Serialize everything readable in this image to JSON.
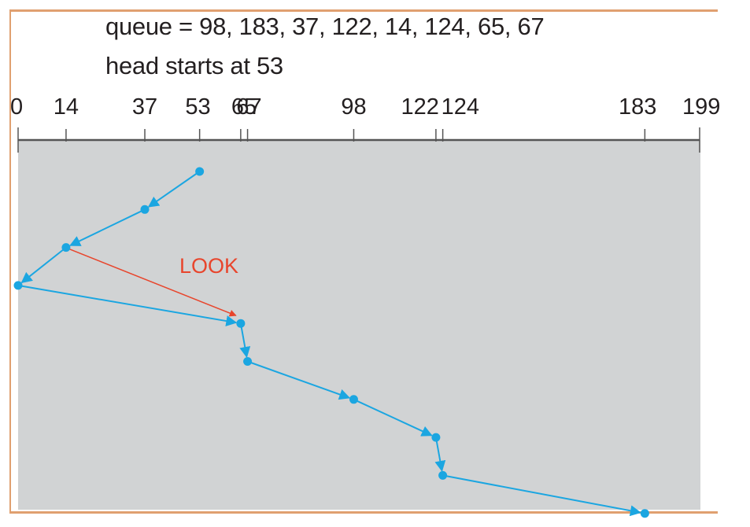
{
  "header": {
    "queue_line": "queue = 98, 183, 37, 122, 14, 124, 65, 67",
    "head_line": "head starts at 53"
  },
  "axis": {
    "ticks": [
      {
        "value": 0,
        "label": "0"
      },
      {
        "value": 14,
        "label": "14"
      },
      {
        "value": 37,
        "label": "37"
      },
      {
        "value": 53,
        "label": "53"
      },
      {
        "value": 65,
        "label": "65"
      },
      {
        "value": 67,
        "label": "67"
      },
      {
        "value": 98,
        "label": "98"
      },
      {
        "value": 122,
        "label": "122"
      },
      {
        "value": 124,
        "label": "124"
      },
      {
        "value": 183,
        "label": "183"
      },
      {
        "value": 199,
        "label": "199"
      }
    ]
  },
  "path": {
    "sequence": [
      53,
      37,
      14,
      0,
      65,
      67,
      98,
      122,
      124,
      183
    ],
    "color": "#1ba6e1"
  },
  "annotation": {
    "label": "LOOK",
    "from": 14,
    "to": 65,
    "color": "#e8452c"
  },
  "colors": {
    "background": "#d1d3d4",
    "frame": "#e0a070",
    "axis": "#555555"
  }
}
